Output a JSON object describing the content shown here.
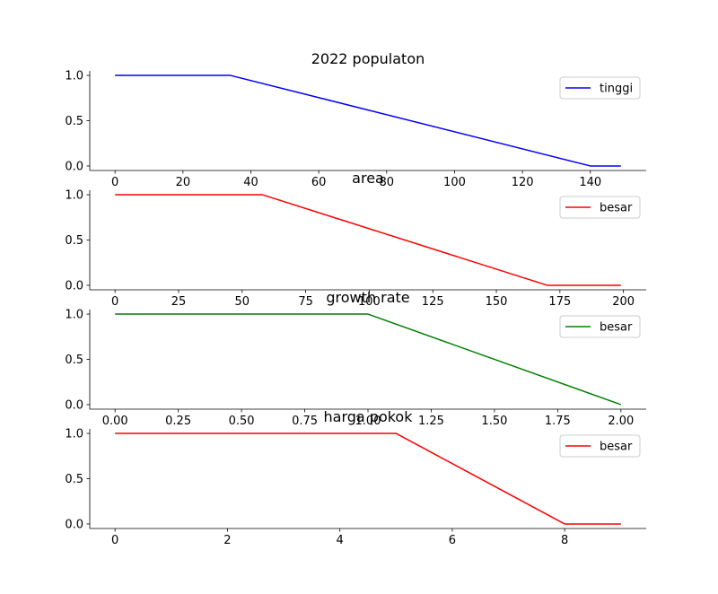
{
  "chart_data": [
    {
      "type": "line",
      "title": "2022 populaton",
      "xlabel": "",
      "ylabel": "",
      "xlim": [
        -7.45,
        156.45
      ],
      "ylim": [
        -0.05,
        1.05
      ],
      "xticks": [
        0,
        20,
        40,
        60,
        80,
        100,
        120,
        140
      ],
      "xtick_labels": [
        "0",
        "20",
        "40",
        "60",
        "80",
        "100",
        "120",
        "140"
      ],
      "yticks": [
        0,
        0.5,
        1
      ],
      "ytick_labels": [
        "0.0",
        "0.5",
        "1.0"
      ],
      "legend_position": "right",
      "grid": false,
      "series": [
        {
          "name": "tinggi",
          "color": "#0000ff",
          "x": [
            0,
            34,
            140,
            149
          ],
          "y": [
            1,
            1,
            0,
            0
          ]
        }
      ]
    },
    {
      "type": "line",
      "title": "area",
      "xlabel": "",
      "ylabel": "",
      "xlim": [
        -9.95,
        208.95
      ],
      "ylim": [
        -0.05,
        1.05
      ],
      "xticks": [
        0,
        25,
        50,
        75,
        100,
        125,
        150,
        175,
        200
      ],
      "xtick_labels": [
        "0",
        "25",
        "50",
        "75",
        "100",
        "125",
        "150",
        "175",
        "200"
      ],
      "yticks": [
        0,
        0.5,
        1
      ],
      "ytick_labels": [
        "0.0",
        "0.5",
        "1.0"
      ],
      "legend_position": "upper right",
      "grid": false,
      "series": [
        {
          "name": "besar",
          "color": "#ff0000",
          "x": [
            0,
            58,
            170,
            199
          ],
          "y": [
            1,
            1,
            0,
            0
          ]
        }
      ]
    },
    {
      "type": "line",
      "title": "growth rate",
      "xlabel": "",
      "ylabel": "",
      "xlim": [
        -0.1,
        2.1
      ],
      "ylim": [
        -0.05,
        1.05
      ],
      "xticks": [
        0,
        0.25,
        0.5,
        0.75,
        1,
        1.25,
        1.5,
        1.75,
        2
      ],
      "xtick_labels": [
        "0.00",
        "0.25",
        "0.50",
        "0.75",
        "1.00",
        "1.25",
        "1.50",
        "1.75",
        "2.00"
      ],
      "yticks": [
        0,
        0.5,
        1
      ],
      "ytick_labels": [
        "0.0",
        "0.5",
        "1.0"
      ],
      "legend_position": "upper right",
      "grid": false,
      "series": [
        {
          "name": "besar",
          "color": "#008000",
          "x": [
            0,
            1,
            2
          ],
          "y": [
            1,
            1,
            0
          ]
        }
      ]
    },
    {
      "type": "line",
      "title": "harga pokok",
      "xlabel": "",
      "ylabel": "",
      "xlim": [
        -0.45,
        9.45
      ],
      "ylim": [
        -0.05,
        1.05
      ],
      "xticks": [
        0,
        2,
        4,
        6,
        8
      ],
      "xtick_labels": [
        "0",
        "2",
        "4",
        "6",
        "8"
      ],
      "yticks": [
        0,
        0.5,
        1
      ],
      "ytick_labels": [
        "0.0",
        "0.5",
        "1.0"
      ],
      "legend_position": "upper right",
      "grid": false,
      "series": [
        {
          "name": "besar",
          "color": "#ff0000",
          "x": [
            0,
            5,
            8,
            9
          ],
          "y": [
            1,
            1,
            0,
            0
          ]
        }
      ]
    }
  ]
}
